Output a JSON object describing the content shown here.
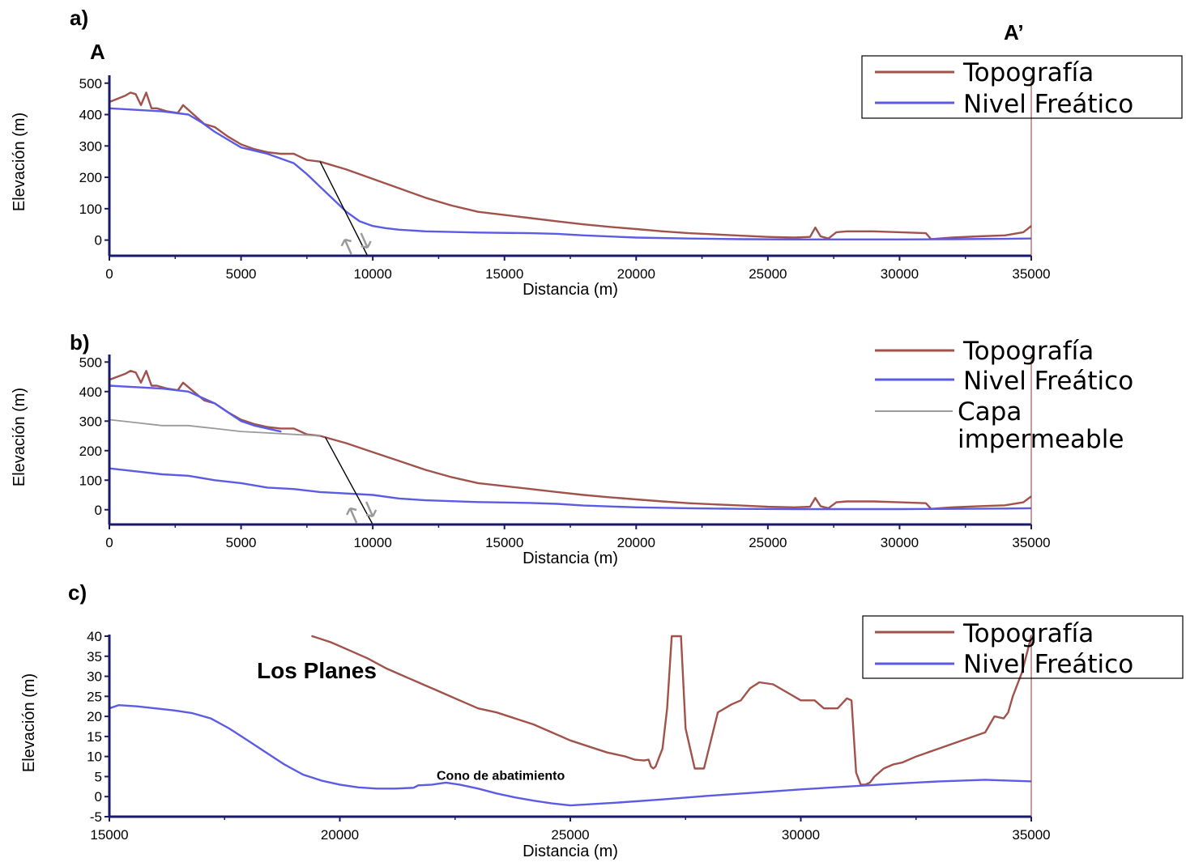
{
  "colors": {
    "topo": "#a0524b",
    "water": "#5b5be6",
    "imper": "#9a9a9a",
    "axis": "#1a1a6a"
  },
  "chart_data": [
    {
      "id": "a",
      "type": "line",
      "panel_label": "a)",
      "section_start_label": "A",
      "section_end_label": "A’",
      "xlabel": "Distancia (m)",
      "ylabel": "Elevación (m)",
      "xlim": [
        0,
        35000
      ],
      "ylim": [
        -50,
        520
      ],
      "xticks": [
        0,
        5000,
        10000,
        15000,
        20000,
        25000,
        30000,
        35000
      ],
      "yticks": [
        0,
        100,
        200,
        300,
        400,
        500
      ],
      "legend": {
        "placement": "top-right",
        "boxed": true
      },
      "series": [
        {
          "name": "Topografía",
          "key": "topo",
          "x": [
            0,
            300,
            600,
            800,
            1000,
            1200,
            1400,
            1600,
            1800,
            2200,
            2600,
            2800,
            3000,
            3200,
            3600,
            4000,
            4500,
            5000,
            5500,
            6000,
            6500,
            7000,
            7500,
            8000,
            9000,
            10000,
            11000,
            12000,
            13000,
            14000,
            15000,
            16000,
            17000,
            18000,
            19000,
            20000,
            21000,
            22000,
            23000,
            24000,
            25000,
            26000,
            26600,
            26800,
            27000,
            27300,
            27600,
            28000,
            29000,
            30000,
            31000,
            31200,
            31500,
            32000,
            33000,
            34000,
            34700,
            35000
          ],
          "y": [
            440,
            450,
            460,
            470,
            465,
            430,
            470,
            420,
            420,
            410,
            405,
            430,
            415,
            400,
            370,
            360,
            330,
            305,
            290,
            280,
            275,
            275,
            255,
            250,
            225,
            195,
            165,
            135,
            110,
            90,
            80,
            70,
            60,
            50,
            42,
            35,
            28,
            22,
            18,
            14,
            10,
            8,
            10,
            40,
            12,
            5,
            25,
            28,
            28,
            25,
            22,
            3,
            5,
            8,
            12,
            15,
            25,
            45
          ]
        },
        {
          "name": "Nivel Freático",
          "key": "water",
          "x": [
            0,
            1000,
            2000,
            3000,
            3500,
            4000,
            4500,
            5000,
            5500,
            6000,
            7000,
            7500,
            8000,
            8500,
            9000,
            9500,
            10000,
            10500,
            11000,
            12000,
            14000,
            16000,
            17000,
            18000,
            20000,
            22000,
            24000,
            26000,
            28000,
            30000,
            32000,
            34000,
            35000
          ],
          "y": [
            420,
            415,
            410,
            400,
            375,
            345,
            320,
            295,
            285,
            275,
            245,
            210,
            170,
            130,
            90,
            60,
            45,
            38,
            33,
            28,
            24,
            22,
            20,
            15,
            8,
            5,
            3,
            2,
            2,
            2,
            3,
            4,
            5
          ]
        }
      ],
      "fault_line": {
        "x": [
          8000,
          9800
        ],
        "y": [
          250,
          -50
        ]
      }
    },
    {
      "id": "b",
      "type": "line",
      "panel_label": "b)",
      "xlabel": "Distancia (m)",
      "ylabel": "Elevación (m)",
      "xlim": [
        0,
        35000
      ],
      "ylim": [
        -50,
        520
      ],
      "xticks": [
        0,
        5000,
        10000,
        15000,
        20000,
        25000,
        30000,
        35000
      ],
      "yticks": [
        0,
        100,
        200,
        300,
        400,
        500
      ],
      "legend": {
        "placement": "top-right",
        "boxed": false
      },
      "series": [
        {
          "name": "Topografía",
          "key": "topo",
          "x": [
            0,
            300,
            600,
            800,
            1000,
            1200,
            1400,
            1600,
            1800,
            2200,
            2600,
            2800,
            3000,
            3200,
            3600,
            4000,
            4500,
            5000,
            5500,
            6000,
            6500,
            7000,
            7500,
            8000,
            9000,
            10000,
            11000,
            12000,
            13000,
            14000,
            15000,
            16000,
            17000,
            18000,
            19000,
            20000,
            21000,
            22000,
            23000,
            24000,
            25000,
            26000,
            26600,
            26800,
            27000,
            27300,
            27600,
            28000,
            29000,
            30000,
            31000,
            31200,
            31500,
            32000,
            33000,
            34000,
            34700,
            35000
          ],
          "y": [
            440,
            450,
            460,
            470,
            465,
            430,
            470,
            420,
            420,
            410,
            405,
            430,
            415,
            400,
            370,
            360,
            330,
            305,
            290,
            280,
            275,
            275,
            255,
            250,
            225,
            195,
            165,
            135,
            110,
            90,
            80,
            70,
            60,
            50,
            42,
            35,
            28,
            22,
            18,
            14,
            10,
            8,
            10,
            40,
            12,
            5,
            25,
            28,
            28,
            25,
            22,
            3,
            5,
            8,
            12,
            15,
            25,
            45
          ]
        },
        {
          "name": "Nivel Freático",
          "key": "water",
          "segments": [
            {
              "x": [
                0,
                1000,
                2000,
                3000,
                4000,
                5000,
                5500,
                6000,
                6500
              ],
              "y": [
                420,
                415,
                410,
                400,
                360,
                300,
                285,
                275,
                265
              ]
            },
            {
              "x": [
                0,
                1000,
                2000,
                3000,
                4000,
                5000,
                6000,
                7000,
                8000,
                9000,
                10000,
                11000,
                12000,
                14000,
                16000,
                17000,
                18000,
                20000,
                22000,
                24000,
                26000,
                28000,
                30000,
                32000,
                34000,
                35000
              ],
              "y": [
                140,
                130,
                120,
                115,
                100,
                90,
                75,
                70,
                60,
                55,
                50,
                38,
                32,
                26,
                23,
                20,
                14,
                8,
                5,
                3,
                2,
                2,
                2,
                3,
                4,
                5
              ]
            }
          ]
        },
        {
          "name": "Capa impermeable",
          "key": "imper",
          "x": [
            0,
            1000,
            2000,
            3000,
            4000,
            5000,
            6000,
            7000,
            8000
          ],
          "y": [
            305,
            295,
            285,
            285,
            275,
            265,
            260,
            255,
            250
          ]
        }
      ],
      "fault_line": {
        "x": [
          8200,
          10000
        ],
        "y": [
          245,
          -50
        ]
      }
    },
    {
      "id": "c",
      "type": "line",
      "panel_label": "c)",
      "xlabel": "Distancia (m)",
      "ylabel": "Elevación (m)",
      "xlim": [
        15000,
        35000
      ],
      "ylim": [
        -5,
        40
      ],
      "xticks": [
        15000,
        20000,
        25000,
        30000,
        35000
      ],
      "yticks": [
        -5,
        0,
        5,
        10,
        15,
        20,
        25,
        30,
        35,
        40
      ],
      "legend": {
        "placement": "top-right",
        "boxed": true
      },
      "annotations": [
        {
          "text": "Los Planes",
          "x": 18200,
          "y": 29.5,
          "size": "big"
        },
        {
          "text": "Cono de abatimiento",
          "x": 22100,
          "y": 4.2,
          "size": "small"
        }
      ],
      "series": [
        {
          "name": "Topografía",
          "key": "topo",
          "x": [
            19400,
            19800,
            20200,
            20600,
            21000,
            21400,
            21800,
            22200,
            22600,
            23000,
            23400,
            23800,
            24200,
            24600,
            25000,
            25400,
            25800,
            26000,
            26200,
            26400,
            26600,
            26700,
            26750,
            26800,
            26850,
            26900,
            27000,
            27100,
            27200,
            27400,
            27500,
            27600,
            27700,
            27900,
            28200,
            28500,
            28700,
            28900,
            29100,
            29400,
            29700,
            30000,
            30300,
            30500,
            30800,
            31000,
            31100,
            31200,
            31300,
            31400,
            31500,
            31600,
            31800,
            32000,
            32200,
            32500,
            33000,
            33500,
            34000,
            34200,
            34400,
            34500,
            34600,
            34800,
            35000
          ],
          "y": [
            40,
            38.5,
            36.5,
            34.5,
            32,
            30,
            28,
            26,
            24,
            22,
            21,
            19.5,
            18,
            16,
            14,
            12.5,
            11,
            10.5,
            10,
            9.2,
            9,
            9.2,
            7.5,
            7,
            7.5,
            9,
            12,
            22,
            40,
            40,
            17,
            12,
            7,
            7,
            21,
            23,
            24,
            27,
            28.5,
            28,
            26,
            24,
            24,
            22,
            22,
            24.5,
            24,
            6,
            3,
            3,
            3.5,
            5,
            7,
            8,
            8.5,
            10,
            12,
            14,
            16,
            20,
            19.5,
            21,
            25,
            31,
            40
          ]
        },
        {
          "name": "Nivel Freático",
          "key": "water",
          "x": [
            15000,
            15200,
            15600,
            16000,
            16400,
            16800,
            17200,
            17600,
            18000,
            18400,
            18800,
            19200,
            19600,
            20000,
            20400,
            20800,
            21200,
            21600,
            21700,
            22000,
            22300,
            22600,
            23000,
            23400,
            23800,
            24200,
            24600,
            25000,
            26000,
            27000,
            28000,
            29000,
            30000,
            31000,
            32000,
            33000,
            34000,
            34500,
            35000
          ],
          "y": [
            22,
            22.8,
            22.5,
            22,
            21.5,
            20.8,
            19.5,
            17,
            14,
            11,
            8,
            5.5,
            4,
            3,
            2.3,
            2,
            2,
            2.2,
            2.8,
            3,
            3.5,
            3,
            2,
            0.8,
            -0.2,
            -1,
            -1.7,
            -2.2,
            -1.5,
            -0.7,
            0.2,
            1,
            1.8,
            2.5,
            3.2,
            3.8,
            4.2,
            4,
            3.8
          ]
        }
      ]
    }
  ]
}
